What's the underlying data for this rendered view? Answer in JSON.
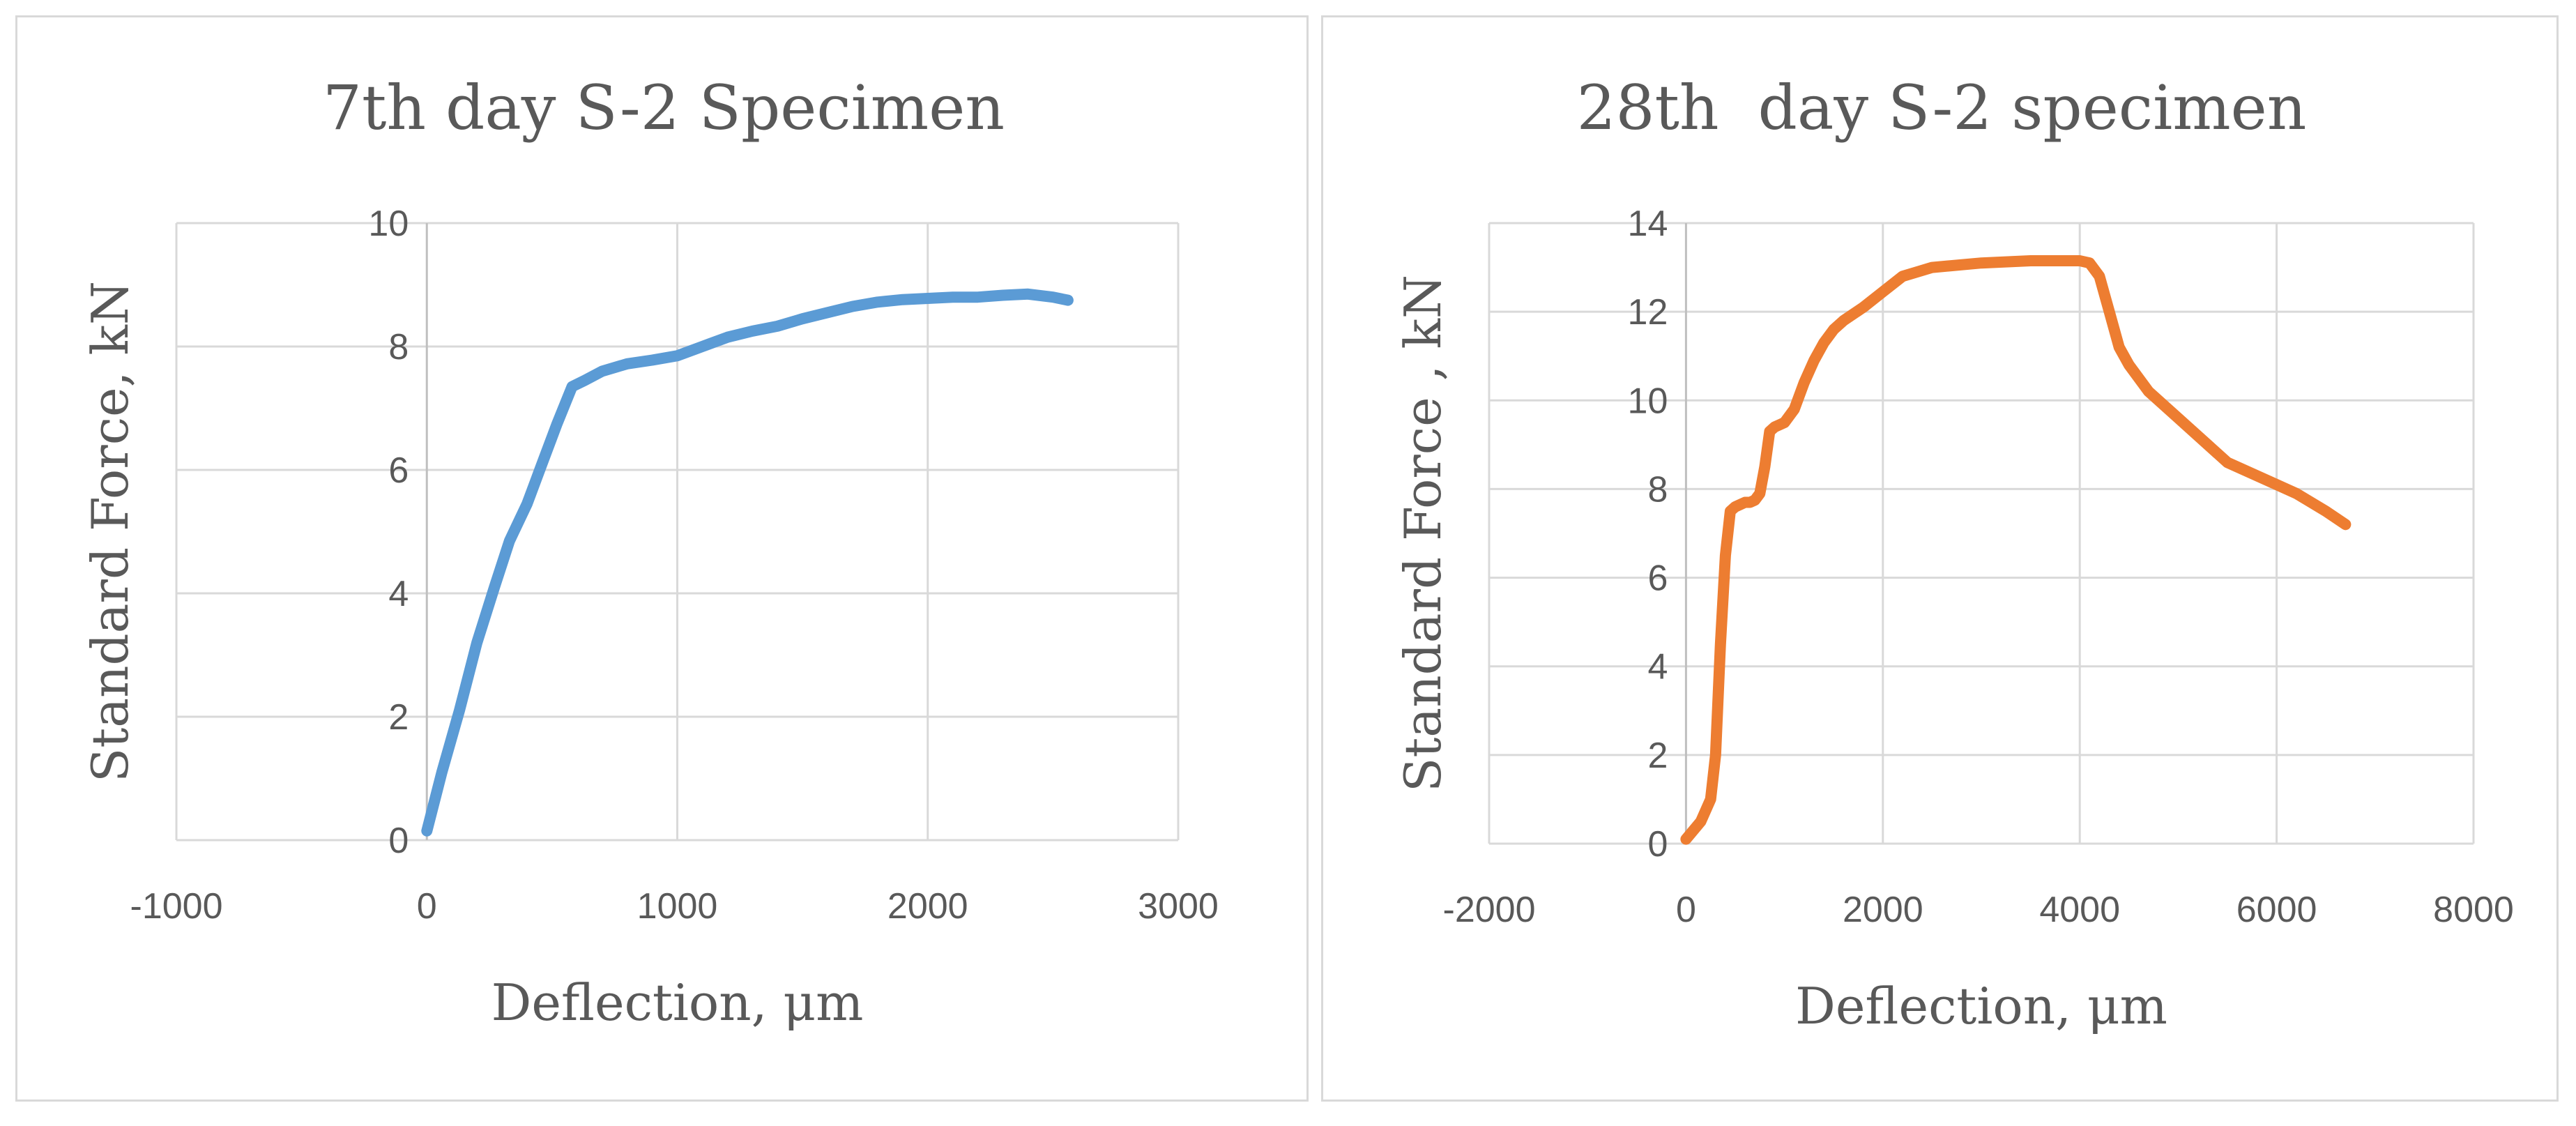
{
  "chart_data": [
    {
      "type": "line",
      "title": "7th day S-2 Specimen",
      "xlabel": "Deflection, μm",
      "ylabel": "Standard Force, kN",
      "xlim": [
        -1000,
        3000
      ],
      "ylim": [
        0,
        10
      ],
      "xticks": [
        -1000,
        0,
        1000,
        2000,
        3000
      ],
      "yticks": [
        0,
        2,
        4,
        6,
        8,
        10
      ],
      "grid": true,
      "series": [
        {
          "name": "7th day S-2",
          "color": "#5b9bd5",
          "x": [
            0,
            60,
            130,
            200,
            270,
            330,
            400,
            460,
            520,
            580,
            630,
            700,
            800,
            900,
            1000,
            1100,
            1200,
            1300,
            1400,
            1500,
            1600,
            1700,
            1800,
            1900,
            2000,
            2100,
            2200,
            2300,
            2400,
            2500,
            2560
          ],
          "y": [
            0.15,
            1.1,
            2.1,
            3.2,
            4.1,
            4.85,
            5.45,
            6.1,
            6.75,
            7.35,
            7.45,
            7.6,
            7.72,
            7.78,
            7.85,
            8.0,
            8.15,
            8.25,
            8.33,
            8.45,
            8.55,
            8.65,
            8.72,
            8.76,
            8.78,
            8.8,
            8.8,
            8.83,
            8.85,
            8.8,
            8.75
          ]
        }
      ]
    },
    {
      "type": "line",
      "title": "28th  day S-2 specimen",
      "xlabel": "Deflection, μm",
      "ylabel": "Standard Force , kN",
      "xlim": [
        -2000,
        8000
      ],
      "ylim": [
        0,
        14
      ],
      "xticks": [
        -2000,
        0,
        2000,
        4000,
        6000,
        8000
      ],
      "yticks": [
        0,
        2,
        4,
        6,
        8,
        10,
        12,
        14
      ],
      "grid": true,
      "series": [
        {
          "name": "28th day S-2",
          "color": "#ed7d31",
          "x": [
            0,
            150,
            250,
            300,
            350,
            400,
            450,
            500,
            550,
            600,
            650,
            700,
            750,
            800,
            850,
            900,
            950,
            1000,
            1100,
            1200,
            1300,
            1400,
            1500,
            1600,
            1800,
            2000,
            2200,
            2500,
            3000,
            3500,
            4000,
            4100,
            4200,
            4300,
            4400,
            4500,
            4700,
            5000,
            5500,
            6000,
            6200,
            6500,
            6700
          ],
          "y": [
            0.1,
            0.5,
            1.0,
            2.0,
            4.5,
            6.5,
            7.5,
            7.6,
            7.65,
            7.7,
            7.7,
            7.75,
            7.9,
            8.5,
            9.3,
            9.4,
            9.45,
            9.5,
            9.8,
            10.4,
            10.9,
            11.3,
            11.6,
            11.8,
            12.1,
            12.45,
            12.8,
            13.0,
            13.1,
            13.15,
            13.15,
            13.1,
            12.8,
            12.0,
            11.2,
            10.8,
            10.2,
            9.6,
            8.6,
            8.1,
            7.9,
            7.5,
            7.2
          ]
        }
      ]
    }
  ]
}
